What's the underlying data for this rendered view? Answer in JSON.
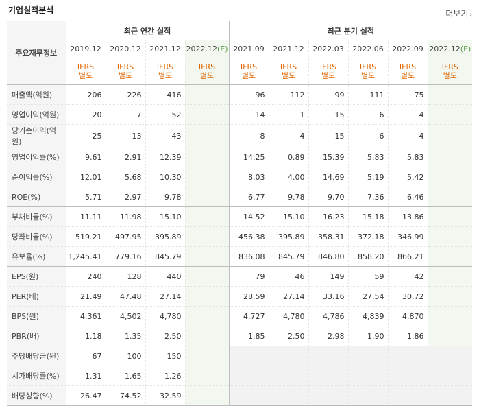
{
  "header": {
    "title": "기업실적분석",
    "more": "더보기"
  },
  "table": {
    "label_head": "주요재무정보",
    "group_annual": "최근 연간 실적",
    "group_quarter": "최근 분기 실적",
    "annual_periods": [
      "2019.12",
      "2020.12",
      "2021.12"
    ],
    "annual_estimate": {
      "period": "2022.12",
      "mark": "(E)"
    },
    "quarter_periods": [
      "2021.09",
      "2021.12",
      "2022.03",
      "2022.06",
      "2022.09"
    ],
    "quarter_estimate": {
      "period": "2022.12",
      "mark": "(E)"
    },
    "ifrs_line1": "IFRS",
    "ifrs_line2": "별도",
    "rows": [
      {
        "label": "매출액(억원)",
        "annual": [
          "206",
          "226",
          "416"
        ],
        "quarter": [
          "96",
          "112",
          "99",
          "111",
          "75"
        ]
      },
      {
        "label": "영업이익(억원)",
        "annual": [
          "20",
          "7",
          "52"
        ],
        "quarter": [
          "14",
          "1",
          "15",
          "6",
          "4"
        ]
      },
      {
        "label": "당기순이익(억원)",
        "annual": [
          "25",
          "13",
          "43"
        ],
        "quarter": [
          "8",
          "4",
          "15",
          "6",
          "4"
        ]
      },
      {
        "label": "영업이익률(%)",
        "annual": [
          "9.61",
          "2.91",
          "12.39"
        ],
        "quarter": [
          "14.25",
          "0.89",
          "15.39",
          "5.83",
          "5.83"
        ]
      },
      {
        "label": "순이익률(%)",
        "annual": [
          "12.01",
          "5.68",
          "10.30"
        ],
        "quarter": [
          "8.03",
          "4.00",
          "14.69",
          "5.19",
          "5.42"
        ]
      },
      {
        "label": "ROE(%)",
        "annual": [
          "5.71",
          "2.97",
          "9.78"
        ],
        "quarter": [
          "6.77",
          "9.78",
          "9.70",
          "7.36",
          "6.46"
        ]
      },
      {
        "label": "부채비율(%)",
        "annual": [
          "11.11",
          "11.98",
          "15.10"
        ],
        "quarter": [
          "14.52",
          "15.10",
          "16.23",
          "15.18",
          "13.86"
        ]
      },
      {
        "label": "당좌비율(%)",
        "annual": [
          "519.21",
          "497.95",
          "395.89"
        ],
        "quarter": [
          "456.38",
          "395.89",
          "358.31",
          "372.18",
          "346.99"
        ]
      },
      {
        "label": "유보율(%)",
        "annual": [
          "1,245.41",
          "779.16",
          "845.79"
        ],
        "quarter": [
          "836.08",
          "845.79",
          "846.80",
          "858.20",
          "866.21"
        ]
      },
      {
        "label": "EPS(원)",
        "annual": [
          "240",
          "128",
          "440"
        ],
        "quarter": [
          "79",
          "46",
          "149",
          "59",
          "42"
        ]
      },
      {
        "label": "PER(배)",
        "annual": [
          "21.49",
          "47.48",
          "27.14"
        ],
        "quarter": [
          "28.59",
          "27.14",
          "33.16",
          "27.54",
          "30.72"
        ]
      },
      {
        "label": "BPS(원)",
        "annual": [
          "4,361",
          "4,502",
          "4,780"
        ],
        "quarter": [
          "4,727",
          "4,780",
          "4,786",
          "4,839",
          "4,870"
        ]
      },
      {
        "label": "PBR(배)",
        "annual": [
          "1.18",
          "1.35",
          "2.50"
        ],
        "quarter": [
          "1.85",
          "2.50",
          "2.98",
          "1.90",
          "1.86"
        ]
      },
      {
        "label": "주당배당금(원)",
        "annual": [
          "67",
          "100",
          "150"
        ],
        "quarter": [
          "",
          "",
          "",
          "",
          ""
        ]
      },
      {
        "label": "시가배당률(%)",
        "annual": [
          "1.31",
          "1.65",
          "1.26"
        ],
        "quarter": [
          "",
          "",
          "",
          "",
          ""
        ]
      },
      {
        "label": "배당성향(%)",
        "annual": [
          "26.47",
          "74.52",
          "32.59"
        ],
        "quarter": [
          "",
          "",
          "",
          "",
          ""
        ]
      }
    ]
  }
}
